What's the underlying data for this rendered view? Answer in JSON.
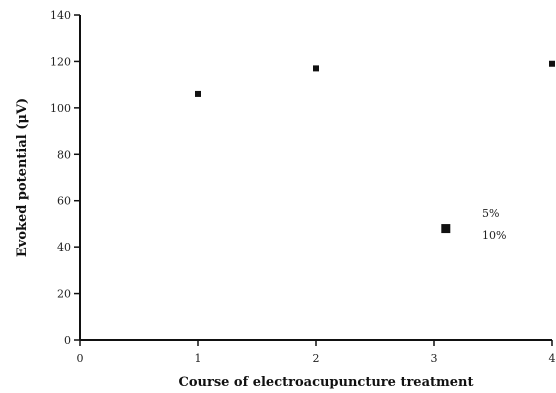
{
  "chart_data": {
    "type": "scatter",
    "title": "",
    "xlabel": "Course of electroacupuncture treatment",
    "ylabel": "Evoked potential (μV)",
    "xlim": [
      0,
      4
    ],
    "ylim": [
      0,
      140
    ],
    "xticks": [
      "0",
      "1",
      "2",
      "3",
      "4"
    ],
    "yticks": [
      "0",
      "20",
      "40",
      "60",
      "80",
      "100",
      "120",
      "140"
    ],
    "grid": false,
    "legend_position": "right",
    "series": [
      {
        "name": "",
        "marker": "square",
        "points": [
          {
            "x": 1,
            "y": 106
          },
          {
            "x": 2,
            "y": 117
          },
          {
            "x": 3.1,
            "y": 48
          },
          {
            "x": 4,
            "y": 119
          }
        ]
      }
    ],
    "legend_entries": [
      "5%",
      "10%"
    ]
  }
}
